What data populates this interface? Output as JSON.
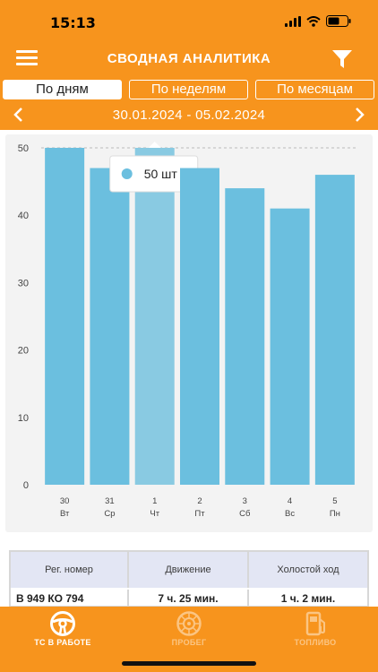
{
  "status_bar": {
    "time": "15:13"
  },
  "header": {
    "title": "СВОДНАЯ АНАЛИТИКА"
  },
  "tabs": [
    {
      "label": "По дням",
      "active": true
    },
    {
      "label": "По неделям",
      "active": false
    },
    {
      "label": "По месяцам",
      "active": false
    }
  ],
  "date_range": "30.01.2024 - 05.02.2024",
  "tooltip": {
    "text": "50 шт"
  },
  "chart_data": {
    "type": "bar",
    "categories": [
      {
        "day": "30",
        "weekday": "Вт"
      },
      {
        "day": "31",
        "weekday": "Ср"
      },
      {
        "day": "1",
        "weekday": "Чт"
      },
      {
        "day": "2",
        "weekday": "Пт"
      },
      {
        "day": "3",
        "weekday": "Сб"
      },
      {
        "day": "4",
        "weekday": "Вс"
      },
      {
        "day": "5",
        "weekday": "Пн"
      }
    ],
    "values": [
      50,
      47,
      50,
      47,
      44,
      41,
      46
    ],
    "highlighted_index": 2,
    "ylim": [
      0,
      50
    ],
    "yticks": [
      "0",
      "10",
      "20",
      "30",
      "40",
      "50"
    ],
    "bar_color": "#6bbfdf",
    "highlight_color": "#89cae2"
  },
  "table": {
    "headers": [
      "Рег. номер",
      "Движение",
      "Холостой ход"
    ],
    "rows": [
      [
        "В 949 КО 794",
        "7 ч. 25 мин.",
        "1 ч. 2 мин."
      ]
    ]
  },
  "bottom_nav": [
    {
      "label": "ТС В РАБОТЕ",
      "icon": "steering-wheel-icon",
      "active": true
    },
    {
      "label": "ПРОБЕГ",
      "icon": "wheel-icon",
      "active": false
    },
    {
      "label": "ТОПЛИВО",
      "icon": "fuel-icon",
      "active": false
    }
  ],
  "colors": {
    "accent": "#f7941d",
    "inactive": "#fbc583"
  }
}
